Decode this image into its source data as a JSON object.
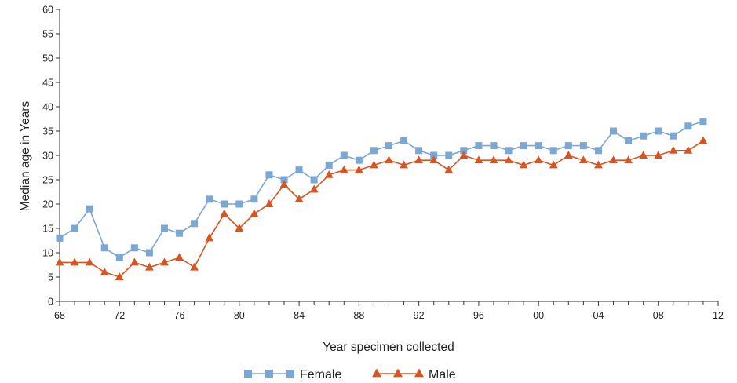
{
  "chart_data": {
    "type": "line",
    "title": "",
    "xlabel": "Year specimen collected",
    "ylabel": "Median age in Years",
    "xlim": [
      1968,
      2012
    ],
    "ylim": [
      0,
      60
    ],
    "x_tick_labels": [
      "68",
      "72",
      "76",
      "80",
      "84",
      "88",
      "92",
      "96",
      "00",
      "04",
      "08",
      "12"
    ],
    "y_tick_labels": [
      "0",
      "5",
      "10",
      "15",
      "20",
      "25",
      "30",
      "35",
      "40",
      "45",
      "50",
      "55",
      "60"
    ],
    "grid": false,
    "legend_position": "bottom",
    "x": [
      1968,
      1969,
      1970,
      1971,
      1972,
      1973,
      1974,
      1975,
      1976,
      1977,
      1978,
      1979,
      1980,
      1981,
      1982,
      1983,
      1984,
      1985,
      1986,
      1987,
      1988,
      1989,
      1990,
      1991,
      1992,
      1993,
      1994,
      1995,
      1996,
      1997,
      1998,
      1999,
      2000,
      2001,
      2002,
      2003,
      2004,
      2005,
      2006,
      2007,
      2008,
      2009,
      2010,
      2011
    ],
    "series": [
      {
        "name": "Female",
        "marker": "square",
        "color": "#7ba7d4",
        "values": [
          13,
          15,
          19,
          11,
          9,
          11,
          10,
          15,
          14,
          16,
          21,
          20,
          20,
          21,
          26,
          25,
          27,
          25,
          28,
          30,
          29,
          31,
          32,
          33,
          31,
          30,
          30,
          31,
          32,
          32,
          31,
          32,
          32,
          31,
          32,
          32,
          31,
          35,
          33,
          34,
          35,
          34,
          36,
          37
        ]
      },
      {
        "name": "Male",
        "marker": "triangle",
        "color": "#d9541e",
        "values": [
          8,
          8,
          8,
          6,
          5,
          8,
          7,
          8,
          9,
          7,
          13,
          18,
          15,
          18,
          20,
          24,
          21,
          23,
          26,
          27,
          27,
          28,
          29,
          28,
          29,
          29,
          27,
          30,
          29,
          29,
          29,
          28,
          29,
          28,
          30,
          29,
          28,
          29,
          29,
          30,
          30,
          31,
          31,
          33
        ]
      }
    ]
  }
}
